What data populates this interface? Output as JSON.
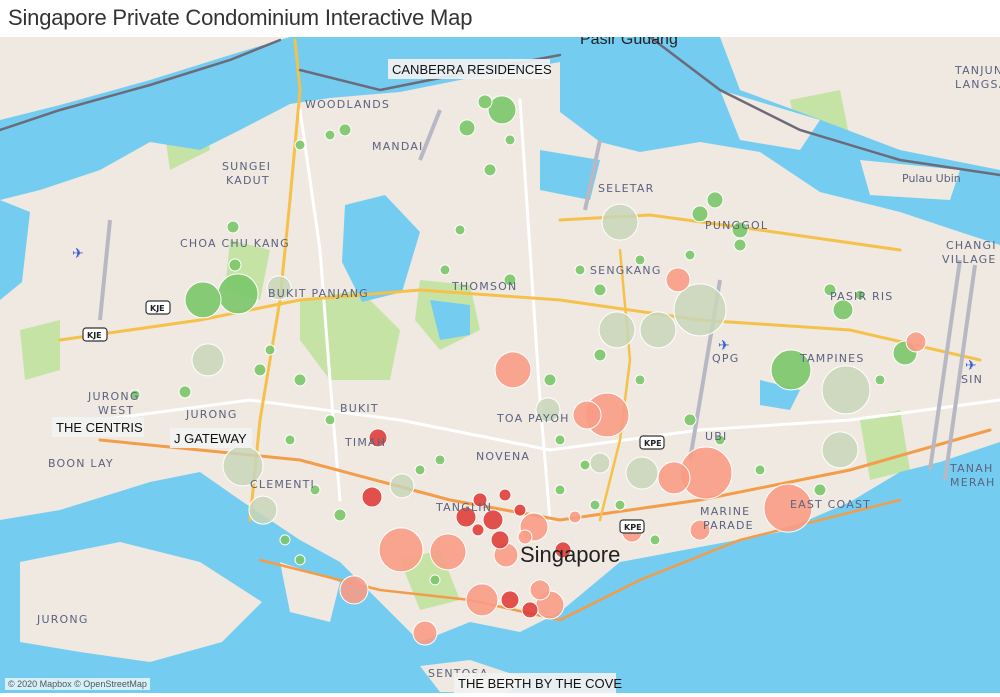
{
  "title": "Singapore Private Condominium Interactive Map",
  "attribution": "© 2020 Mapbox © OpenStreetMap",
  "colors": {
    "land": "#efe9e1",
    "water": "#74cdf0",
    "park": "#c6e3a6",
    "expressway": "#f5c14a",
    "major_road": "#f39c4a",
    "road": "#ffffff",
    "border": "#6b6b7a"
  },
  "place_labels": {
    "pasir_gudang": "Pasir Gudang",
    "woodlands": "WOODLANDS",
    "mandai": "MANDAI",
    "sungei": "SUNGEI",
    "kadut": "KADUT",
    "seletar": "SELETAR",
    "tanjung": "TANJUNG",
    "langsat": "LANGSAT",
    "pulau_ubin": "Pulau Ubin",
    "choa_chu_kang": "CHOA CHU KANG",
    "bukit_panjang": "BUKIT PANJANG",
    "punggol": "PUNGGOL",
    "sengkang": "SENGKANG",
    "thomson": "THOMSON",
    "changi": "CHANGI",
    "village": "VILLAGE",
    "pasir_ris": "PASIR RIS",
    "qpg": "QPG",
    "sin": "SIN",
    "tampines": "TAMPINES",
    "jurong_west_1": "JURONG",
    "jurong_west_2": "WEST",
    "bukit_timah_1": "BUKIT",
    "bukit_timah_2": "TIMAH",
    "toa_payoh": "TOA PAYOH",
    "ubi": "UBI",
    "novena": "NOVENA",
    "tanglin": "TANGLIN",
    "clementi": "CLEMENTI",
    "boon_lay": "BOON LAY",
    "marine_parade_1": "MARINE",
    "marine_parade_2": "PARADE",
    "east_coast": "EAST COAST",
    "tanah_merah_1": "TANAH",
    "tanah_merah_2": "MERAH",
    "singapore": "Singapore",
    "jurong": "JURONG",
    "sentosa": "SENTOSA"
  },
  "callouts": {
    "canberra": "CANBERRA RESIDENCES",
    "centris": "THE CENTRIS",
    "j_gateway": "J GATEWAY",
    "berth": "THE BERTH BY THE COVE"
  },
  "road_badges": {
    "kje_1": "KJE",
    "kje_2": "KJE",
    "kpe_1": "KPE",
    "kpe_2": "KPE"
  },
  "marker_colors": {
    "green": "#7ac769",
    "grey_green": "#c8d6b8",
    "salmon": "#f89c86",
    "red": "#df3f3b"
  },
  "condos": [
    [
      103.6812,
      1.383,
      18,
      "green"
    ],
    [
      103.6952,
      1.3851,
      20,
      "green"
    ],
    [
      103.7116,
      1.3872,
      12,
      "grey_green"
    ],
    [
      103.6832,
      1.362,
      16,
      "grey_green"
    ],
    [
      103.6972,
      1.3249,
      20,
      "grey_green"
    ],
    [
      103.7052,
      1.3094,
      14,
      "grey_green"
    ],
    [
      103.7604,
      1.2955,
      22,
      "salmon"
    ],
    [
      103.7792,
      1.2948,
      18,
      "salmon"
    ],
    [
      103.8052,
      1.3585,
      18,
      "salmon"
    ],
    [
      103.8192,
      1.3445,
      12,
      "grey_green"
    ],
    [
      103.8428,
      1.3427,
      22,
      "salmon"
    ],
    [
      103.8348,
      1.3427,
      14,
      "salmon"
    ],
    [
      103.848,
      1.4102,
      18,
      "grey_green"
    ],
    [
      103.8468,
      1.3725,
      18,
      "grey_green"
    ],
    [
      103.8632,
      1.3725,
      18,
      "grey_green"
    ],
    [
      103.88,
      1.3795,
      26,
      "grey_green"
    ],
    [
      103.8712,
      1.39,
      12,
      "salmon"
    ],
    [
      103.9164,
      1.3585,
      20,
      "green"
    ],
    [
      103.9384,
      1.3515,
      24,
      "grey_green"
    ],
    [
      103.8824,
      1.3224,
      26,
      "salmon"
    ],
    [
      103.8696,
      1.3207,
      16,
      "salmon"
    ],
    [
      103.8568,
      1.3224,
      16,
      "grey_green"
    ],
    [
      103.9152,
      1.3101,
      24,
      "salmon"
    ],
    [
      103.936,
      1.3305,
      18,
      "grey_green"
    ],
    [
      103.8008,
      1.4495,
      14,
      "green"
    ],
    [
      103.7868,
      1.4432,
      8,
      "green"
    ],
    [
      103.794,
      1.4523,
      7,
      "green"
    ],
    [
      103.7928,
      1.278,
      16,
      "salmon"
    ],
    [
      103.82,
      1.2762,
      14,
      "salmon"
    ],
    [
      103.7416,
      1.2815,
      14,
      "salmon"
    ],
    [
      103.77,
      1.2664,
      12,
      "salmon"
    ],
    [
      103.7608,
      1.3179,
      12,
      "grey_green"
    ],
    [
      103.7488,
      1.314,
      10,
      "red"
    ],
    [
      103.7512,
      1.3347,
      9,
      "red"
    ],
    [
      103.8136,
      1.3035,
      14,
      "salmon"
    ],
    [
      103.8024,
      1.2937,
      12,
      "salmon"
    ],
    [
      103.8252,
      1.2955,
      8,
      "red"
    ],
    [
      103.7864,
      1.307,
      10,
      "red"
    ],
    [
      103.7972,
      1.306,
      10,
      "red"
    ],
    [
      103.84,
      1.3259,
      10,
      "grey_green"
    ],
    [
      103.8528,
      1.3017,
      10,
      "salmon"
    ],
    [
      103.88,
      1.3024,
      10,
      "salmon"
    ],
    [
      103.9664,
      1.3683,
      10,
      "salmon"
    ],
    [
      103.962,
      1.3644,
      12,
      "green"
    ],
    [
      103.9372,
      1.3795,
      10,
      "green"
    ],
    [
      103.896,
      1.4075,
      8,
      "green"
    ],
    [
      103.886,
      1.418,
      8,
      "green"
    ],
    [
      103.88,
      1.4131,
      8,
      "green"
    ],
    [
      103.792,
      1.313,
      7,
      "red"
    ],
    [
      103.802,
      1.3147,
      6,
      "red"
    ],
    [
      103.808,
      1.3094,
      6,
      "red"
    ],
    [
      103.7912,
      1.3025,
      6,
      "red"
    ],
    [
      103.8,
      1.299,
      9,
      "red"
    ],
    [
      103.804,
      1.278,
      9,
      "red"
    ],
    [
      103.812,
      1.2745,
      8,
      "red"
    ],
    [
      103.816,
      1.2815,
      10,
      "salmon"
    ],
    [
      103.738,
      1.4425,
      6,
      "green"
    ],
    [
      103.72,
      1.4372,
      5,
      "green"
    ],
    [
      103.732,
      1.4407,
      5,
      "green"
    ],
    [
      103.6932,
      1.4085,
      6,
      "green"
    ],
    [
      103.694,
      1.3952,
      6,
      "green"
    ],
    [
      103.704,
      1.3585,
      6,
      "green"
    ],
    [
      103.708,
      1.3655,
      5,
      "green"
    ],
    [
      103.72,
      1.355,
      6,
      "green"
    ],
    [
      103.674,
      1.3508,
      6,
      "green"
    ],
    [
      103.654,
      1.3497,
      5,
      "green"
    ],
    [
      103.716,
      1.334,
      5,
      "green"
    ],
    [
      103.714,
      1.299,
      5,
      "green"
    ],
    [
      103.732,
      1.341,
      5,
      "green"
    ],
    [
      103.768,
      1.3235,
      5,
      "green"
    ],
    [
      103.776,
      1.327,
      5,
      "green"
    ],
    [
      103.82,
      1.355,
      6,
      "green"
    ],
    [
      103.824,
      1.334,
      5,
      "green"
    ],
    [
      103.834,
      1.3252,
      5,
      "green"
    ],
    [
      103.838,
      1.3112,
      5,
      "green"
    ],
    [
      103.848,
      1.3112,
      5,
      "green"
    ],
    [
      103.862,
      1.299,
      5,
      "green"
    ],
    [
      103.86,
      1.334,
      5,
      "green"
    ],
    [
      103.876,
      1.341,
      6,
      "green"
    ],
    [
      103.888,
      1.334,
      5,
      "green"
    ],
    [
      103.904,
      1.3235,
      5,
      "green"
    ],
    [
      103.928,
      1.3165,
      6,
      "green"
    ],
    [
      103.952,
      1.355,
      5,
      "green"
    ],
    [
      103.932,
      1.3865,
      6,
      "green"
    ],
    [
      103.944,
      1.3847,
      5,
      "green"
    ],
    [
      103.896,
      1.4022,
      6,
      "green"
    ],
    [
      103.876,
      1.3987,
      5,
      "green"
    ],
    [
      103.856,
      1.397,
      5,
      "green"
    ],
    [
      103.832,
      1.3935,
      5,
      "green"
    ],
    [
      103.804,
      1.39,
      6,
      "green"
    ],
    [
      103.796,
      1.4285,
      6,
      "green"
    ],
    [
      103.804,
      1.439,
      5,
      "green"
    ],
    [
      103.784,
      1.4075,
      5,
      "green"
    ],
    [
      103.778,
      1.3935,
      5,
      "green"
    ],
    [
      103.84,
      1.3865,
      6,
      "green"
    ],
    [
      103.856,
      1.355,
      5,
      "green"
    ],
    [
      103.84,
      1.3637,
      6,
      "green"
    ],
    [
      103.824,
      1.3165,
      5,
      "green"
    ],
    [
      103.726,
      1.3165,
      5,
      "green"
    ],
    [
      103.736,
      1.3077,
      6,
      "green"
    ],
    [
      103.72,
      1.292,
      5,
      "green"
    ],
    [
      103.774,
      1.285,
      5,
      "green"
    ],
    [
      103.81,
      1.3,
      7,
      "salmon"
    ],
    [
      103.83,
      1.307,
      6,
      "salmon"
    ]
  ]
}
